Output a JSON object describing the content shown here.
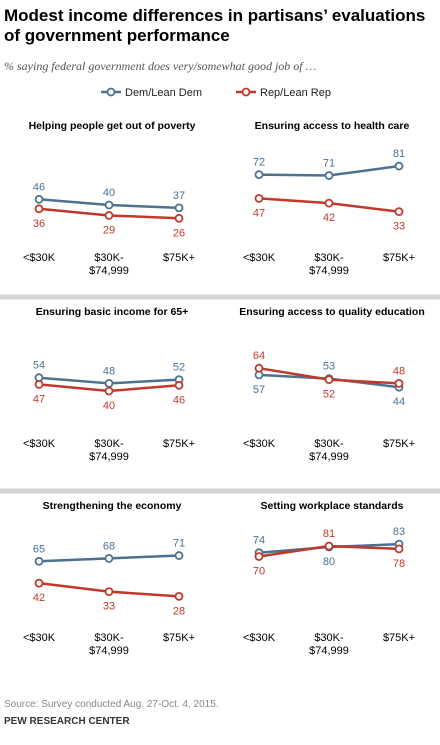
{
  "title": "Modest income differences in partisans’ evaluations of government performance",
  "subtitle": "% saying federal government does very/somewhat good job of …",
  "colors": {
    "dem": "#4C7191",
    "rep": "#C0392B",
    "divider": "#D4D4D4",
    "label": "#000000"
  },
  "legend": [
    {
      "name": "Dem/Lean Dem",
      "color": "#4C7191"
    },
    {
      "name": "Rep/Lean Rep",
      "color": "#C0392B"
    }
  ],
  "categories": [
    {
      "line1": "<$30K",
      "line2": ""
    },
    {
      "line1": "$30K-",
      "line2": "$74,999"
    },
    {
      "line1": "$75K+",
      "line2": ""
    }
  ],
  "chart_data": [
    {
      "type": "line",
      "title": "Helping people get out of poverty",
      "categories": [
        "<$30K",
        "$30K-$74,999",
        "$75K+"
      ],
      "series": [
        {
          "name": "Dem/Lean Dem",
          "values": [
            46,
            40,
            37
          ]
        },
        {
          "name": "Rep/Lean Rep",
          "values": [
            36,
            29,
            26
          ]
        }
      ]
    },
    {
      "type": "line",
      "title": "Ensuring access to health care",
      "categories": [
        "<$30K",
        "$30K-$74,999",
        "$75K+"
      ],
      "series": [
        {
          "name": "Dem/Lean Dem",
          "values": [
            72,
            71,
            81
          ]
        },
        {
          "name": "Rep/Lean Rep",
          "values": [
            47,
            42,
            33
          ]
        }
      ]
    },
    {
      "type": "line",
      "title": "Ensuring basic income for 65+",
      "categories": [
        "<$30K",
        "$30K-$74,999",
        "$75K+"
      ],
      "series": [
        {
          "name": "Dem/Lean Dem",
          "values": [
            54,
            48,
            52
          ]
        },
        {
          "name": "Rep/Lean Rep",
          "values": [
            47,
            40,
            46
          ]
        }
      ]
    },
    {
      "type": "line",
      "title": "Ensuring access to quality education",
      "categories": [
        "<$30K",
        "$30K-$74,999",
        "$75K+"
      ],
      "series": [
        {
          "name": "Dem/Lean Dem",
          "values": [
            57,
            53,
            44
          ]
        },
        {
          "name": "Rep/Lean Rep",
          "values": [
            64,
            52,
            48
          ]
        }
      ]
    },
    {
      "type": "line",
      "title": "Strengthening the economy",
      "categories": [
        "<$30K",
        "$30K-$74,999",
        "$75K+"
      ],
      "series": [
        {
          "name": "Dem/Lean Dem",
          "values": [
            65,
            68,
            71
          ]
        },
        {
          "name": "Rep/Lean Rep",
          "values": [
            42,
            33,
            28
          ]
        }
      ]
    },
    {
      "type": "line",
      "title": "Setting workplace standards",
      "categories": [
        "<$30K",
        "$30K-$74,999",
        "$75K+"
      ],
      "series": [
        {
          "name": "Dem/Lean Dem",
          "values": [
            74,
            80,
            83
          ]
        },
        {
          "name": "Rep/Lean Rep",
          "values": [
            70,
            81,
            78
          ]
        }
      ]
    }
  ],
  "source": "Source: Survey conducted Aug. 27-Oct. 4, 2015.",
  "org": "PEW RESEARCH CENTER"
}
